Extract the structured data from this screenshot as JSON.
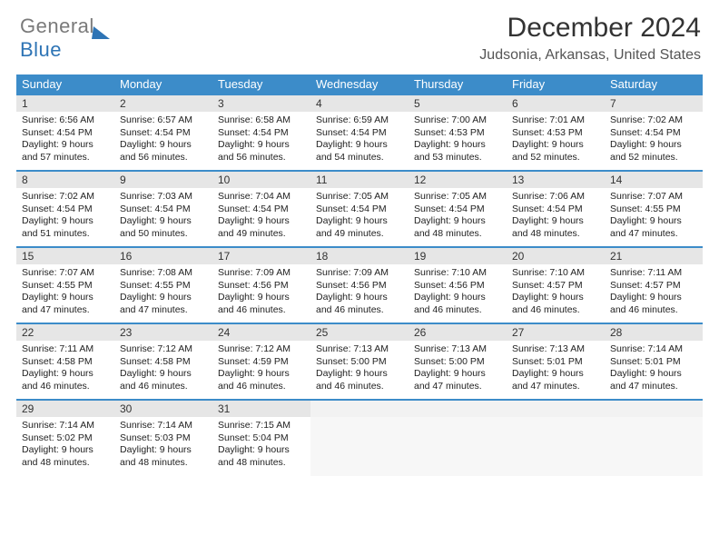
{
  "logo": {
    "text_gray": "General",
    "text_blue": "Blue"
  },
  "header": {
    "month": "December 2024",
    "location": "Judsonia, Arkansas, United States"
  },
  "dow": [
    "Sunday",
    "Monday",
    "Tuesday",
    "Wednesday",
    "Thursday",
    "Friday",
    "Saturday"
  ],
  "colors": {
    "header_bg": "#3c8cc9",
    "daynum_bg": "#e6e6e6",
    "rule": "#3c8cc9"
  },
  "weeks": [
    [
      {
        "n": "1",
        "sr": "6:56 AM",
        "ss": "4:54 PM",
        "dl": "9 hours and 57 minutes."
      },
      {
        "n": "2",
        "sr": "6:57 AM",
        "ss": "4:54 PM",
        "dl": "9 hours and 56 minutes."
      },
      {
        "n": "3",
        "sr": "6:58 AM",
        "ss": "4:54 PM",
        "dl": "9 hours and 56 minutes."
      },
      {
        "n": "4",
        "sr": "6:59 AM",
        "ss": "4:54 PM",
        "dl": "9 hours and 54 minutes."
      },
      {
        "n": "5",
        "sr": "7:00 AM",
        "ss": "4:53 PM",
        "dl": "9 hours and 53 minutes."
      },
      {
        "n": "6",
        "sr": "7:01 AM",
        "ss": "4:53 PM",
        "dl": "9 hours and 52 minutes."
      },
      {
        "n": "7",
        "sr": "7:02 AM",
        "ss": "4:54 PM",
        "dl": "9 hours and 52 minutes."
      }
    ],
    [
      {
        "n": "8",
        "sr": "7:02 AM",
        "ss": "4:54 PM",
        "dl": "9 hours and 51 minutes."
      },
      {
        "n": "9",
        "sr": "7:03 AM",
        "ss": "4:54 PM",
        "dl": "9 hours and 50 minutes."
      },
      {
        "n": "10",
        "sr": "7:04 AM",
        "ss": "4:54 PM",
        "dl": "9 hours and 49 minutes."
      },
      {
        "n": "11",
        "sr": "7:05 AM",
        "ss": "4:54 PM",
        "dl": "9 hours and 49 minutes."
      },
      {
        "n": "12",
        "sr": "7:05 AM",
        "ss": "4:54 PM",
        "dl": "9 hours and 48 minutes."
      },
      {
        "n": "13",
        "sr": "7:06 AM",
        "ss": "4:54 PM",
        "dl": "9 hours and 48 minutes."
      },
      {
        "n": "14",
        "sr": "7:07 AM",
        "ss": "4:55 PM",
        "dl": "9 hours and 47 minutes."
      }
    ],
    [
      {
        "n": "15",
        "sr": "7:07 AM",
        "ss": "4:55 PM",
        "dl": "9 hours and 47 minutes."
      },
      {
        "n": "16",
        "sr": "7:08 AM",
        "ss": "4:55 PM",
        "dl": "9 hours and 47 minutes."
      },
      {
        "n": "17",
        "sr": "7:09 AM",
        "ss": "4:56 PM",
        "dl": "9 hours and 46 minutes."
      },
      {
        "n": "18",
        "sr": "7:09 AM",
        "ss": "4:56 PM",
        "dl": "9 hours and 46 minutes."
      },
      {
        "n": "19",
        "sr": "7:10 AM",
        "ss": "4:56 PM",
        "dl": "9 hours and 46 minutes."
      },
      {
        "n": "20",
        "sr": "7:10 AM",
        "ss": "4:57 PM",
        "dl": "9 hours and 46 minutes."
      },
      {
        "n": "21",
        "sr": "7:11 AM",
        "ss": "4:57 PM",
        "dl": "9 hours and 46 minutes."
      }
    ],
    [
      {
        "n": "22",
        "sr": "7:11 AM",
        "ss": "4:58 PM",
        "dl": "9 hours and 46 minutes."
      },
      {
        "n": "23",
        "sr": "7:12 AM",
        "ss": "4:58 PM",
        "dl": "9 hours and 46 minutes."
      },
      {
        "n": "24",
        "sr": "7:12 AM",
        "ss": "4:59 PM",
        "dl": "9 hours and 46 minutes."
      },
      {
        "n": "25",
        "sr": "7:13 AM",
        "ss": "5:00 PM",
        "dl": "9 hours and 46 minutes."
      },
      {
        "n": "26",
        "sr": "7:13 AM",
        "ss": "5:00 PM",
        "dl": "9 hours and 47 minutes."
      },
      {
        "n": "27",
        "sr": "7:13 AM",
        "ss": "5:01 PM",
        "dl": "9 hours and 47 minutes."
      },
      {
        "n": "28",
        "sr": "7:14 AM",
        "ss": "5:01 PM",
        "dl": "9 hours and 47 minutes."
      }
    ],
    [
      {
        "n": "29",
        "sr": "7:14 AM",
        "ss": "5:02 PM",
        "dl": "9 hours and 48 minutes."
      },
      {
        "n": "30",
        "sr": "7:14 AM",
        "ss": "5:03 PM",
        "dl": "9 hours and 48 minutes."
      },
      {
        "n": "31",
        "sr": "7:15 AM",
        "ss": "5:04 PM",
        "dl": "9 hours and 48 minutes."
      },
      null,
      null,
      null,
      null
    ]
  ],
  "labels": {
    "sunrise": "Sunrise:",
    "sunset": "Sunset:",
    "daylight": "Daylight:"
  }
}
